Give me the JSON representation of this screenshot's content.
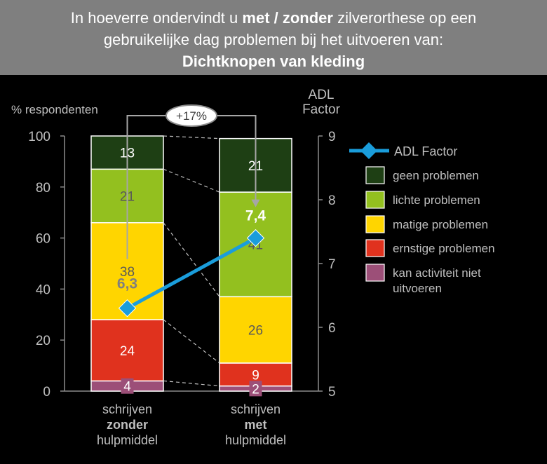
{
  "header": {
    "line1_pre": "In hoeverre ondervindt u ",
    "line1_bold": "met / zonder",
    "line1_post": " zilverorthese op een",
    "line2": "gebruikelijke dag problemen bij het uitvoeren van:",
    "line3": "Dichtknopen van kleding"
  },
  "chart_data": {
    "type": "bar",
    "stacked": true,
    "title": "Dichtknopen van kleding",
    "ylabel": "% respondenten",
    "y2label": "ADL Factor",
    "ylim": [
      0,
      100
    ],
    "y2lim": [
      5,
      9
    ],
    "yticks": [
      "0",
      "20",
      "40",
      "60",
      "80",
      "100"
    ],
    "y2ticks": [
      "5",
      "6",
      "7",
      "8",
      "9"
    ],
    "categories": [
      [
        "schrijven",
        "zonder",
        "hulpmiddel"
      ],
      [
        "schrijven",
        "met",
        "hulpmiddel"
      ]
    ],
    "series": [
      {
        "name": "kan activiteit niet uitvoeren",
        "color": "#9c4f78",
        "values": [
          4,
          2
        ]
      },
      {
        "name": "ernstige problemen",
        "color": "#e0321e",
        "values": [
          24,
          9
        ]
      },
      {
        "name": "matige problemen",
        "color": "#ffd500",
        "values": [
          38,
          26
        ]
      },
      {
        "name": "lichte problemen",
        "color": "#93c01f",
        "values": [
          21,
          41
        ]
      },
      {
        "name": "geen problemen",
        "color": "#1e3f14",
        "values": [
          13,
          21
        ]
      }
    ],
    "value_labels": [
      [
        "4",
        "24",
        "38",
        "21",
        "13"
      ],
      [
        "2",
        "9",
        "26",
        "41",
        "21"
      ]
    ],
    "adl": {
      "name": "ADL Factor",
      "color": "#1a9ddb",
      "values": [
        6.3,
        7.4
      ],
      "labels": [
        "6,3",
        "7,4"
      ]
    },
    "change_label": "+17%",
    "legend_position": "right"
  }
}
